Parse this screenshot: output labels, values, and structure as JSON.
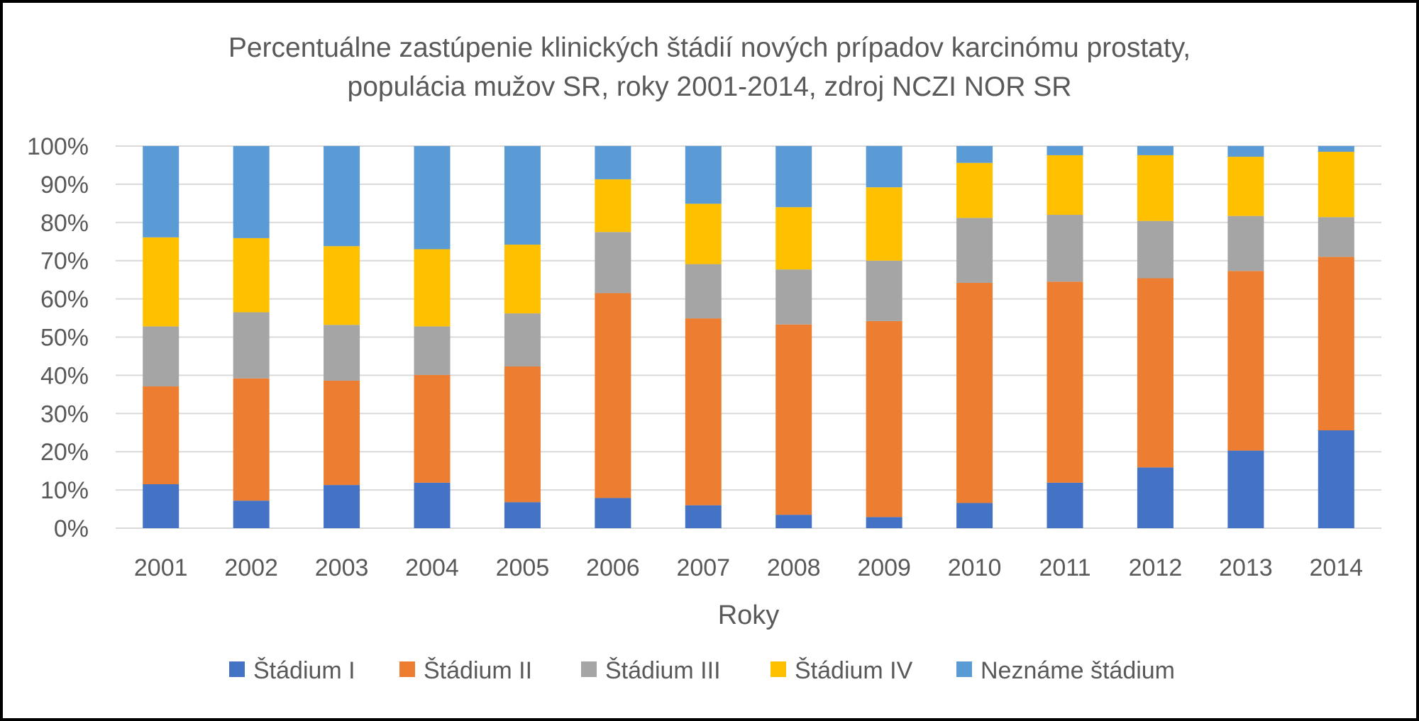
{
  "chart_data": {
    "type": "bar",
    "stacked": true,
    "title_lines": [
      "Percentuálne zastúpenie klinických štádií nových prípadov karcinómu prostaty,",
      "populácia mužov SR, roky 2001-2014, zdroj NCZI NOR SR"
    ],
    "xlabel": "Roky",
    "ylabel": "",
    "ylim": [
      0,
      100
    ],
    "y_ticks": [
      "0%",
      "10%",
      "20%",
      "30%",
      "40%",
      "50%",
      "60%",
      "70%",
      "80%",
      "90%",
      "100%"
    ],
    "grid": true,
    "legend_position": "bottom",
    "categories": [
      "2001",
      "2002",
      "2003",
      "2004",
      "2005",
      "2006",
      "2007",
      "2008",
      "2009",
      "2010",
      "2011",
      "2012",
      "2013",
      "2014"
    ],
    "series": [
      {
        "name": "Štádium I",
        "color": "#4472C4",
        "values": [
          11.5,
          7.2,
          11.3,
          11.9,
          6.8,
          7.9,
          6.0,
          3.5,
          2.9,
          6.6,
          11.9,
          15.9,
          20.3,
          25.6
        ]
      },
      {
        "name": "Štádium II",
        "color": "#ED7D31",
        "values": [
          25.6,
          32.0,
          27.3,
          28.2,
          35.5,
          53.6,
          48.9,
          49.8,
          51.3,
          57.6,
          52.6,
          49.5,
          47.0,
          45.4
        ]
      },
      {
        "name": "Štádium III",
        "color": "#A5A5A5",
        "values": [
          15.7,
          17.3,
          14.6,
          12.7,
          13.9,
          16.0,
          14.2,
          14.4,
          15.8,
          17.0,
          17.5,
          15.0,
          14.4,
          10.4
        ]
      },
      {
        "name": "Štádium IV",
        "color": "#FFC000",
        "values": [
          23.3,
          19.4,
          20.6,
          20.2,
          18.0,
          13.8,
          15.8,
          16.3,
          19.2,
          14.4,
          15.6,
          17.2,
          15.5,
          17.1
        ]
      },
      {
        "name": "Neznáme štádium",
        "color": "#5B9BD5",
        "values": [
          23.9,
          24.1,
          26.2,
          27.0,
          25.8,
          8.7,
          15.1,
          16.0,
          10.8,
          4.4,
          2.4,
          2.4,
          2.8,
          1.5
        ]
      }
    ]
  }
}
